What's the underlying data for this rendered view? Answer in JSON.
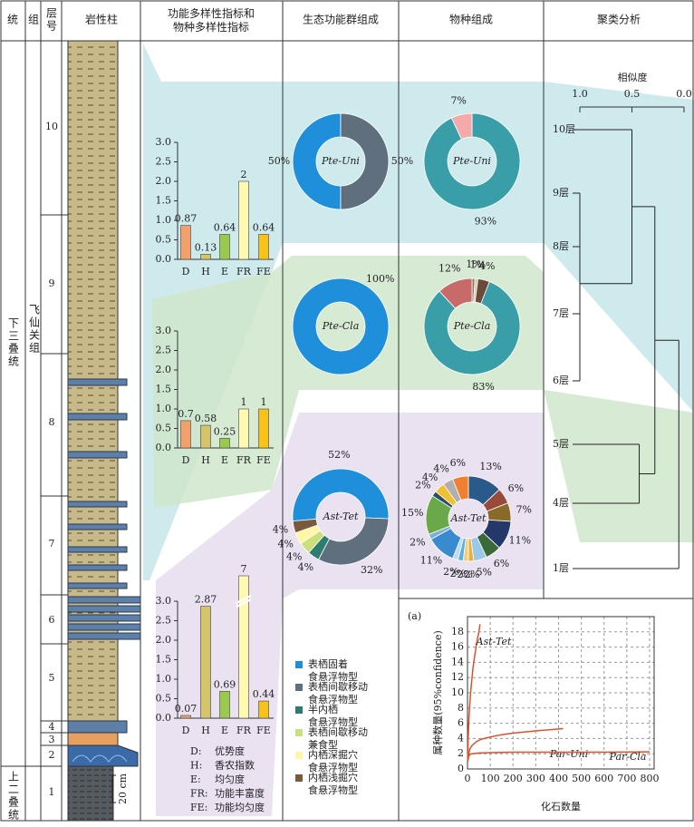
{
  "header": {
    "columns": [
      "统",
      "组",
      "层号",
      "岩性柱",
      "功能多样性指标和\n物种多样性指标",
      "生态功能群组成",
      "物种组成",
      "聚类分析"
    ]
  },
  "stratigraphy": {
    "series": [
      "下三叠统",
      "上二叠统"
    ],
    "formation": "飞仙关组",
    "layers": [
      "10",
      "9",
      "8",
      "7",
      "6",
      "5",
      "4",
      "3",
      "2",
      "1"
    ],
    "scale": "20 cm"
  },
  "index_legend": [
    {
      "abbr": "D:",
      "name": "优势度"
    },
    {
      "abbr": "H:",
      "name": "香农指数"
    },
    {
      "abbr": "E:",
      "name": "均匀度"
    },
    {
      "abbr": "FR:",
      "name": "功能丰富度"
    },
    {
      "abbr": "FE:",
      "name": "功能均匀度"
    }
  ],
  "eco_legend": {
    "names": [
      "表栖固着\n食悬浮物型",
      "表栖间歇移动\n食悬浮物型",
      "半内栖\n食悬浮物型",
      "表栖间歇移动\n兼食型",
      "内栖深掘穴\n食悬浮物型",
      "内栖浅掘穴\n食悬浮物型"
    ],
    "colors": [
      "#1f8fdc",
      "#5f6f7d",
      "#2f7d70",
      "#c9e07c",
      "#fff6a6",
      "#7a5a3c"
    ]
  },
  "chart_data": [
    {
      "type": "bar",
      "categories": [
        "D",
        "H",
        "E",
        "FR",
        "FE"
      ],
      "values": [
        0.87,
        0.13,
        0.64,
        2,
        0.64
      ],
      "colors": [
        "#f4a06a",
        "#d4c46c",
        "#9ac94c",
        "#fff9b4",
        "#f7c21c"
      ],
      "ylim": [
        0,
        3
      ],
      "yticks": [
        {
          "value": 0,
          "label": "0.0"
        },
        {
          "value": 0.5,
          "label": "0.5"
        },
        {
          "value": 1,
          "label": "1.0"
        },
        {
          "value": 1.5,
          "label": "1.5"
        },
        {
          "value": 2,
          "label": "2.0"
        },
        {
          "value": 2.5,
          "label": "2.5"
        },
        {
          "value": 3,
          "label": "3.0"
        }
      ]
    },
    {
      "type": "bar",
      "categories": [
        "D",
        "H",
        "E",
        "FR",
        "FE"
      ],
      "values": [
        0.7,
        0.58,
        0.25,
        1,
        1
      ],
      "colors": [
        "#f4a06a",
        "#d4c46c",
        "#9ac94c",
        "#fff9b4",
        "#f7c21c"
      ],
      "ylim": [
        0,
        3
      ],
      "yticks": [
        {
          "value": 0,
          "label": "0.0"
        },
        {
          "value": 0.5,
          "label": "0.5"
        },
        {
          "value": 1,
          "label": "1.0"
        },
        {
          "value": 1.5,
          "label": "1.5"
        },
        {
          "value": 2,
          "label": "2.0"
        },
        {
          "value": 2.5,
          "label": "2.5"
        },
        {
          "value": 3,
          "label": "3.0"
        }
      ]
    },
    {
      "type": "bar",
      "categories": [
        "D",
        "H",
        "E",
        "FR",
        "FE"
      ],
      "values": [
        0.07,
        2.87,
        0.69,
        7,
        0.44
      ],
      "colors": [
        "#f4a06a",
        "#d4c46c",
        "#9ac94c",
        "#fff9b4",
        "#f7c21c"
      ],
      "ylim": [
        0,
        3
      ],
      "axis_break": true,
      "yticks": [
        {
          "value": 0,
          "label": "0.0"
        },
        {
          "value": 0.5,
          "label": "0.5"
        },
        {
          "value": 1,
          "label": "1.0"
        },
        {
          "value": 1.5,
          "label": "1.5"
        },
        {
          "value": 2,
          "label": "2.0"
        },
        {
          "value": 2.5,
          "label": "2.5"
        },
        {
          "value": 3,
          "label": "3.0"
        }
      ]
    },
    {
      "type": "pie",
      "title": "Pte-Uni",
      "values": [
        50,
        50
      ],
      "value_labels": [
        "50%",
        "50%"
      ],
      "colors": [
        "#1f8fdc",
        "#5f6f7d"
      ]
    },
    {
      "type": "pie",
      "title": "Pte-Cla",
      "values": [
        100
      ],
      "value_labels": [
        "100%"
      ],
      "colors": [
        "#1f8fdc"
      ]
    },
    {
      "type": "pie",
      "title": "Ast-Tet",
      "values": [
        52,
        32,
        4,
        4,
        4,
        4
      ],
      "value_labels": [
        "52%",
        "32%",
        "4%",
        "4%",
        "4%",
        "4%"
      ],
      "colors": [
        "#1f8fdc",
        "#5f6f7d",
        "#2f7d70",
        "#c9e07c",
        "#fff6a6",
        "#7a5a3c"
      ]
    },
    {
      "type": "pie",
      "title": "Pte-Uni",
      "values": [
        93,
        7
      ],
      "value_labels": [
        "93%",
        "7%"
      ],
      "colors": [
        "#3a9ea8",
        "#f4aaaa"
      ]
    },
    {
      "type": "pie",
      "title": "Pte-Cla",
      "values": [
        1,
        1,
        4,
        83,
        12
      ],
      "value_labels": [
        "1%",
        "1%",
        "4%",
        "83%",
        "12%"
      ],
      "colors": [
        "#8a7a6a",
        "#d8c8a0",
        "#6a4a3a",
        "#3a9ea8",
        "#c86a6a"
      ]
    },
    {
      "type": "pie",
      "title": "Ast-Tet",
      "values": [
        13,
        6,
        7,
        11,
        6,
        5,
        2,
        2,
        2,
        2,
        11,
        2,
        15,
        2,
        4,
        4,
        6
      ],
      "value_labels": [
        "13%",
        "6%",
        "7%",
        "11%",
        "6%",
        "5%",
        "2%",
        "2%",
        "2%",
        "2%",
        "11%",
        "2%",
        "15%",
        "2%",
        "4%",
        "4%",
        "6%"
      ],
      "colors": [
        "#2a5a8a",
        "#9a4a3a",
        "#8a6a2a",
        "#24386a",
        "#3a6a3a",
        "#9ac8e8",
        "#e8b040",
        "#f0d080",
        "#5ab0e0",
        "#c0d8f0",
        "#3a8ad0",
        "#7ab0d8",
        "#6aa84a",
        "#2a4a6a",
        "#f0c030",
        "#b0b0b0",
        "#f08030"
      ]
    },
    {
      "type": "dendrogram",
      "xlabel": "相似度",
      "xlim": [
        1,
        0
      ],
      "xticks": [
        {
          "value": 1,
          "label": "1.0"
        },
        {
          "value": 0.5,
          "label": "0.5"
        },
        {
          "value": 0,
          "label": "0.0"
        }
      ],
      "leaves": [
        "10层",
        "9层",
        "8层",
        "7层",
        "6层",
        "5层",
        "4层",
        "1层"
      ],
      "merges": [
        {
          "members": [
            1,
            2,
            3,
            4
          ],
          "similarity": 1
        },
        {
          "members": [
            0,
            8
          ],
          "similarity": 0.5
        },
        {
          "members": [
            5,
            6
          ],
          "similarity": 0.43
        },
        {
          "members": [
            9,
            10
          ],
          "similarity": 0.28
        },
        {
          "members": [
            11,
            7
          ],
          "similarity": 0.05
        }
      ]
    },
    {
      "type": "line",
      "title": "(a)",
      "xlabel": "化石数量",
      "ylabel": "属种数量(95%confidence)",
      "xlim": [
        0,
        820
      ],
      "ylim": [
        0,
        20
      ],
      "xticks": [
        0,
        100,
        200,
        300,
        400,
        500,
        600,
        700,
        800
      ],
      "yticks": [
        0,
        2,
        4,
        6,
        8,
        10,
        12,
        14,
        16,
        18
      ],
      "grid": true,
      "series": [
        {
          "name": "Ast-Tet",
          "color": "#e0502a",
          "x": [
            1,
            3,
            6,
            10,
            15,
            20,
            25,
            30,
            40,
            50,
            55
          ],
          "values": [
            1,
            4,
            6.5,
            8.5,
            10.5,
            12,
            13.5,
            14.5,
            16.5,
            18,
            19
          ]
        },
        {
          "name": "Par-Uni",
          "color": "#e0502a",
          "x": [
            1,
            5,
            10,
            20,
            40,
            60,
            100,
            150,
            200,
            300,
            420
          ],
          "values": [
            1,
            2,
            2.6,
            3.1,
            3.6,
            3.9,
            4.2,
            4.5,
            4.7,
            5,
            5.3
          ]
        },
        {
          "name": "Par-Cla",
          "color": "#e0502a",
          "x": [
            1,
            5,
            10,
            20,
            50,
            100,
            200,
            400,
            600,
            800
          ],
          "values": [
            1,
            1.6,
            1.9,
            2,
            2.1,
            2.15,
            2.2,
            2.2,
            2.2,
            2.25
          ]
        }
      ]
    }
  ]
}
